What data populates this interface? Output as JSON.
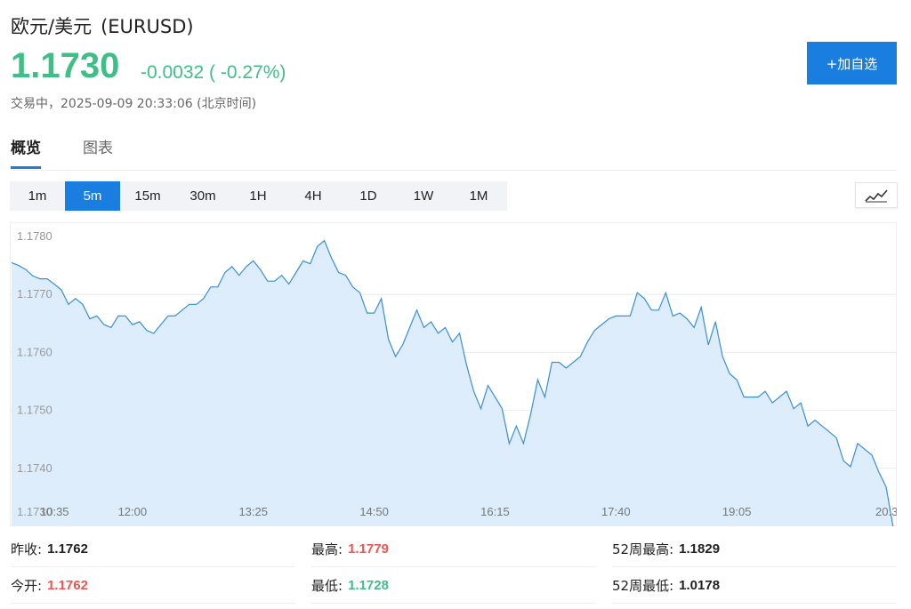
{
  "header": {
    "name": "欧元/美元",
    "symbol": "(EURUSD)",
    "price": "1.1730",
    "change": "-0.0032 ( -0.27%)",
    "status": "交易中，2025-09-09 20:33:06 (北京时间)",
    "fav_button": "+加自选"
  },
  "colors": {
    "accent": "#1a7ee0",
    "down": "#3fbf88",
    "up": "#f0544f",
    "area_fill": "#ddedfb",
    "line": "#3a8fd9"
  },
  "tabs": [
    {
      "label": "概览",
      "active": true
    },
    {
      "label": "图表",
      "active": false
    }
  ],
  "ranges": [
    "1m",
    "5m",
    "15m",
    "30m",
    "1H",
    "4H",
    "1D",
    "1W",
    "1M"
  ],
  "active_range": "5m",
  "chart_type_icon": "line-chart-icon",
  "chart_data": {
    "type": "area",
    "ylim": [
      1.173,
      1.1782
    ],
    "y_ticks": [
      "1.1780",
      "1.1770",
      "1.1760",
      "1.1750",
      "1.1740",
      "1.1730"
    ],
    "x_ticks": [
      "10:35",
      "12:00",
      "13:25",
      "14:50",
      "16:15",
      "17:40",
      "19:05",
      "20:3"
    ],
    "x_tick_index": [
      0,
      17,
      34,
      51,
      68,
      85,
      102,
      119
    ],
    "values": [
      1.17755,
      1.1775,
      1.17743,
      1.17732,
      1.17727,
      1.17727,
      1.17718,
      1.17708,
      1.17683,
      1.17693,
      1.17683,
      1.17658,
      1.17663,
      1.17648,
      1.17643,
      1.17663,
      1.17663,
      1.17648,
      1.17653,
      1.17638,
      1.17633,
      1.17648,
      1.17663,
      1.17663,
      1.17673,
      1.17683,
      1.17683,
      1.17693,
      1.17713,
      1.17713,
      1.17738,
      1.17748,
      1.17733,
      1.17748,
      1.17758,
      1.17743,
      1.17723,
      1.17723,
      1.17733,
      1.17718,
      1.17738,
      1.17758,
      1.17753,
      1.17783,
      1.17793,
      1.17763,
      1.17738,
      1.17733,
      1.17713,
      1.17703,
      1.17668,
      1.17668,
      1.17693,
      1.17623,
      1.17593,
      1.17613,
      1.17643,
      1.17673,
      1.17643,
      1.17653,
      1.17633,
      1.17643,
      1.17618,
      1.17633,
      1.17578,
      1.17533,
      1.17503,
      1.17543,
      1.17523,
      1.17503,
      1.17443,
      1.17473,
      1.17443,
      1.17493,
      1.17553,
      1.17523,
      1.17583,
      1.17583,
      1.17573,
      1.17583,
      1.17593,
      1.17618,
      1.17638,
      1.17648,
      1.17658,
      1.17663,
      1.17663,
      1.17663,
      1.17703,
      1.17693,
      1.17673,
      1.17673,
      1.17703,
      1.17663,
      1.17668,
      1.17658,
      1.17643,
      1.17678,
      1.17613,
      1.17653,
      1.17593,
      1.17563,
      1.17553,
      1.17523,
      1.17523,
      1.17523,
      1.17533,
      1.17513,
      1.17523,
      1.17533,
      1.17503,
      1.17513,
      1.17473,
      1.17483,
      1.17473,
      1.17463,
      1.17453,
      1.17413,
      1.17403,
      1.17443,
      1.17433,
      1.17423,
      1.17393,
      1.17368,
      1.17298
    ]
  },
  "stats": [
    {
      "label": "昨收:",
      "value": "1.1762",
      "tone": "flat"
    },
    {
      "label": "最高:",
      "value": "1.1779",
      "tone": "up"
    },
    {
      "label": "52周最高:",
      "value": "1.1829",
      "tone": "flat"
    },
    {
      "label": "今开:",
      "value": "1.1762",
      "tone": "up"
    },
    {
      "label": "最低:",
      "value": "1.1728",
      "tone": "down"
    },
    {
      "label": "52周最低:",
      "value": "1.0178",
      "tone": "flat"
    }
  ]
}
